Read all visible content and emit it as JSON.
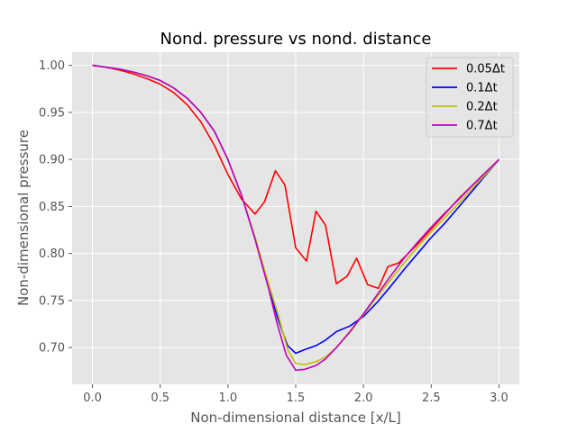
{
  "chart_data": {
    "type": "line",
    "title": "Nond. pressure vs nond. distance",
    "xlabel": "Non-dimensional distance [x/L]",
    "ylabel": "Non-dimensional pressure",
    "xlim": [
      -0.15,
      3.15
    ],
    "ylim": [
      0.661,
      1.014
    ],
    "xticks": [
      0.0,
      0.5,
      1.0,
      1.5,
      2.0,
      2.5,
      3.0
    ],
    "xtick_labels": [
      "0.0",
      "0.5",
      "1.0",
      "1.5",
      "2.0",
      "2.5",
      "3.0"
    ],
    "yticks": [
      0.7,
      0.75,
      0.8,
      0.85,
      0.9,
      0.95,
      1.0
    ],
    "ytick_labels": [
      "0.70",
      "0.75",
      "0.80",
      "0.85",
      "0.90",
      "0.95",
      "1.00"
    ],
    "grid": true,
    "legend_position": "top-right",
    "series": [
      {
        "name": "0.05Δt",
        "color": "#ff0000",
        "x": [
          0.0,
          0.1,
          0.2,
          0.3,
          0.4,
          0.5,
          0.6,
          0.7,
          0.8,
          0.9,
          1.0,
          1.1,
          1.2,
          1.27,
          1.35,
          1.42,
          1.5,
          1.58,
          1.65,
          1.72,
          1.8,
          1.88,
          1.95,
          2.03,
          2.11,
          2.18,
          2.26,
          2.4,
          2.55,
          2.7,
          2.85,
          3.0
        ],
        "y": [
          1.0,
          0.998,
          0.995,
          0.991,
          0.986,
          0.98,
          0.971,
          0.958,
          0.94,
          0.915,
          0.884,
          0.858,
          0.842,
          0.855,
          0.888,
          0.873,
          0.806,
          0.792,
          0.845,
          0.83,
          0.768,
          0.776,
          0.795,
          0.767,
          0.763,
          0.786,
          0.79,
          0.81,
          0.834,
          0.858,
          0.879,
          0.9
        ]
      },
      {
        "name": "0.1Δt",
        "color": "#0000ff",
        "x": [
          0.0,
          0.1,
          0.2,
          0.3,
          0.4,
          0.5,
          0.6,
          0.7,
          0.8,
          0.9,
          1.0,
          1.1,
          1.2,
          1.3,
          1.37,
          1.44,
          1.5,
          1.57,
          1.65,
          1.72,
          1.8,
          1.9,
          2.0,
          2.1,
          2.2,
          2.3,
          2.4,
          2.5,
          2.6,
          2.7,
          2.8,
          2.9,
          3.0
        ],
        "y": [
          1.0,
          0.998,
          0.996,
          0.993,
          0.989,
          0.984,
          0.976,
          0.965,
          0.95,
          0.93,
          0.9,
          0.862,
          0.817,
          0.765,
          0.73,
          0.702,
          0.694,
          0.698,
          0.702,
          0.708,
          0.717,
          0.723,
          0.733,
          0.748,
          0.765,
          0.783,
          0.8,
          0.817,
          0.832,
          0.849,
          0.866,
          0.883,
          0.9
        ]
      },
      {
        "name": "0.2Δt",
        "color": "#bfbf00",
        "x": [
          0.0,
          0.1,
          0.2,
          0.3,
          0.4,
          0.5,
          0.6,
          0.7,
          0.8,
          0.9,
          1.0,
          1.1,
          1.2,
          1.3,
          1.37,
          1.44,
          1.5,
          1.57,
          1.65,
          1.72,
          1.8,
          1.9,
          2.0,
          2.1,
          2.2,
          2.3,
          2.4,
          2.5,
          2.6,
          2.7,
          2.8,
          2.9,
          3.0
        ],
        "y": [
          1.0,
          0.998,
          0.996,
          0.993,
          0.989,
          0.984,
          0.976,
          0.965,
          0.95,
          0.93,
          0.9,
          0.862,
          0.817,
          0.768,
          0.735,
          0.698,
          0.683,
          0.682,
          0.685,
          0.69,
          0.7,
          0.716,
          0.735,
          0.754,
          0.772,
          0.79,
          0.807,
          0.823,
          0.838,
          0.853,
          0.869,
          0.884,
          0.9
        ]
      },
      {
        "name": "0.7Δt",
        "color": "#bf00bf",
        "x": [
          0.0,
          0.1,
          0.2,
          0.3,
          0.4,
          0.5,
          0.6,
          0.7,
          0.8,
          0.9,
          1.0,
          1.1,
          1.2,
          1.3,
          1.36,
          1.43,
          1.5,
          1.57,
          1.65,
          1.72,
          1.8,
          1.9,
          2.0,
          2.1,
          2.2,
          2.3,
          2.4,
          2.5,
          2.6,
          2.7,
          2.8,
          2.9,
          3.0
        ],
        "y": [
          1.0,
          0.998,
          0.996,
          0.993,
          0.989,
          0.984,
          0.976,
          0.965,
          0.95,
          0.93,
          0.9,
          0.862,
          0.815,
          0.763,
          0.727,
          0.692,
          0.676,
          0.677,
          0.681,
          0.688,
          0.7,
          0.717,
          0.736,
          0.756,
          0.776,
          0.795,
          0.812,
          0.828,
          0.843,
          0.857,
          0.872,
          0.886,
          0.9
        ]
      }
    ]
  }
}
